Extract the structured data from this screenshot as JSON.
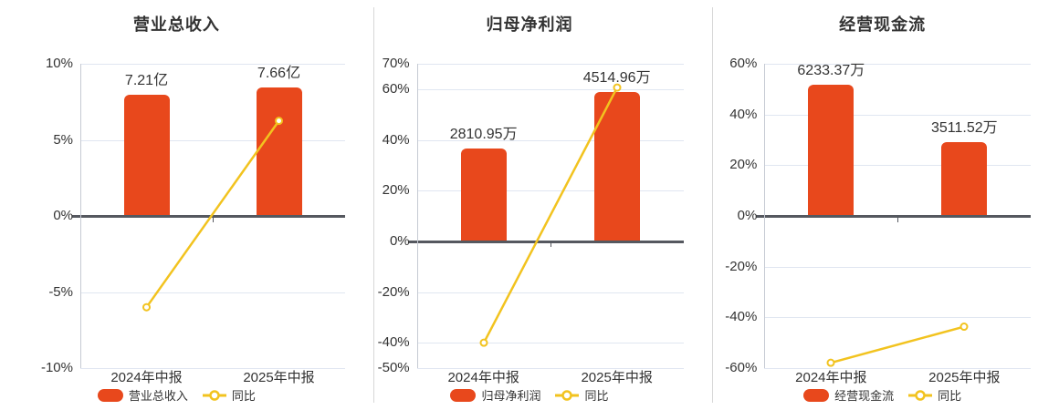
{
  "palette": {
    "bar": "#e8481c",
    "line": "#f2c31f",
    "zero_axis": "#55585f",
    "gridline": "#e0e6f1",
    "y_axis_line": "#c6cad3",
    "text": "#333333",
    "divider": "#d7d7d7",
    "marker_fill": "#ffffff",
    "background": "#ffffff"
  },
  "chart_data": [
    {
      "type": "bar",
      "title": "营业总收入",
      "categories": [
        "2024年中报",
        "2025年中报"
      ],
      "series": [
        {
          "name": "营业总收入",
          "type": "bar",
          "display_values": [
            "7.21亿",
            "7.66亿"
          ],
          "pct_axis_equiv": [
            7.95,
            8.45
          ],
          "color": "#e8481c"
        },
        {
          "name": "同比",
          "type": "line",
          "values_pct": [
            -6.0,
            6.25
          ],
          "color": "#f2c31f"
        }
      ],
      "yaxis": {
        "min": -10,
        "max": 10,
        "tick_values": [
          10,
          5,
          0,
          -5,
          -10
        ],
        "tick_labels": [
          "10%",
          "5%",
          "0%",
          "-5%",
          "-10%"
        ]
      },
      "legend": [
        "营业总收入",
        "同比"
      ],
      "legend_position": "bottom",
      "grid": true
    },
    {
      "type": "bar",
      "title": "归母净利润",
      "categories": [
        "2024年中报",
        "2025年中报"
      ],
      "series": [
        {
          "name": "归母净利润",
          "type": "bar",
          "display_values": [
            "2810.95万",
            "4514.96万"
          ],
          "pct_axis_equiv": [
            36.7,
            59.0
          ],
          "color": "#e8481c"
        },
        {
          "name": "同比",
          "type": "line",
          "values_pct": [
            -40.0,
            60.62
          ],
          "color": "#f2c31f"
        }
      ],
      "yaxis": {
        "min": -50,
        "max": 70,
        "tick_values": [
          70,
          60,
          40,
          20,
          0,
          -20,
          -40,
          -50
        ],
        "tick_labels": [
          "70%",
          "60%",
          "40%",
          "20%",
          "0%",
          "-20%",
          "-40%",
          "-50%"
        ]
      },
      "legend": [
        "归母净利润",
        "同比"
      ],
      "legend_position": "bottom",
      "grid": true
    },
    {
      "type": "bar",
      "title": "经营现金流",
      "categories": [
        "2024年中报",
        "2025年中报"
      ],
      "series": [
        {
          "name": "经营现金流",
          "type": "bar",
          "display_values": [
            "6233.37万",
            "3511.52万"
          ],
          "pct_axis_equiv": [
            51.8,
            29.2
          ],
          "color": "#e8481c"
        },
        {
          "name": "同比",
          "type": "line",
          "values_pct": [
            -57.9,
            -43.67
          ],
          "color": "#f2c31f"
        }
      ],
      "yaxis": {
        "min": -60,
        "max": 60,
        "tick_values": [
          60,
          40,
          20,
          0,
          -20,
          -40,
          -60
        ],
        "tick_labels": [
          "60%",
          "40%",
          "20%",
          "0%",
          "-20%",
          "-40%",
          "-60%"
        ]
      },
      "legend": [
        "经营现金流",
        "同比"
      ],
      "legend_position": "bottom",
      "grid": true
    }
  ]
}
